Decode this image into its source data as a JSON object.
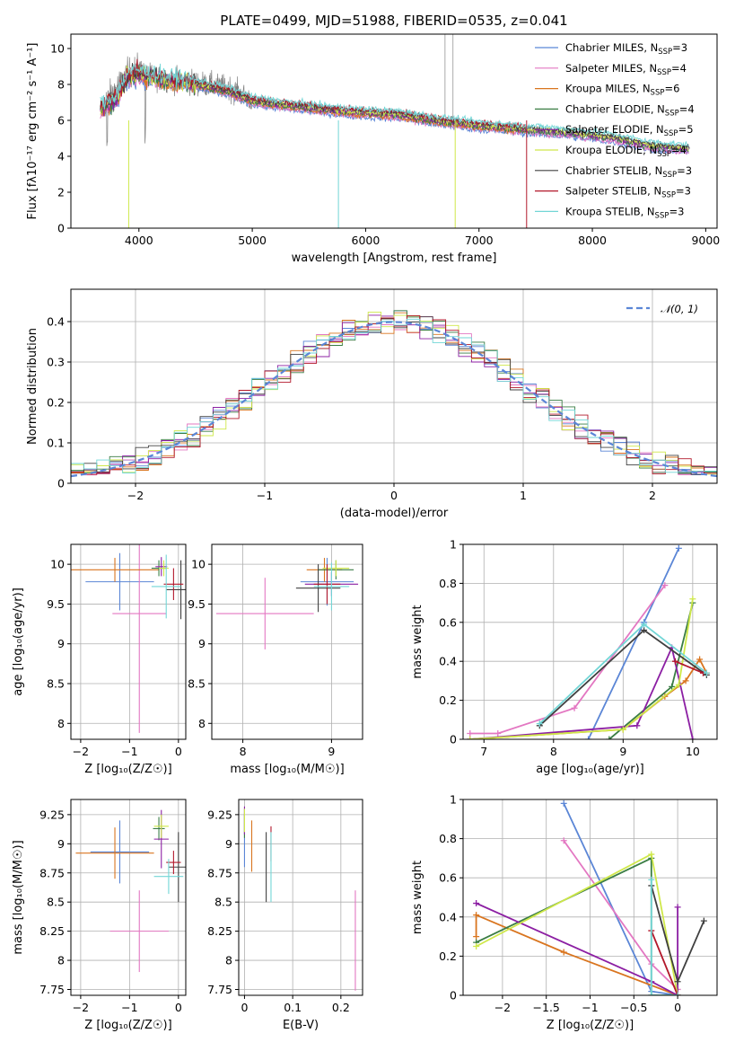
{
  "colors": {
    "chabrier_miles": "#5b86d6",
    "salpeter_miles": "#e377c2",
    "kroupa_miles": "#d9751f",
    "chabrier_elodie": "#3a7d44",
    "salpeter_elodie": "#8c1fa3",
    "kroupa_elodie": "#cfe84a",
    "chabrier_stelib": "#404040",
    "salpeter_stelib": "#b2182b",
    "kroupa_stelib": "#72d6d6",
    "data": "#808080",
    "normal": "#5b86d6"
  },
  "chart_data": [
    {
      "id": "spectrum",
      "type": "line",
      "title": "PLATE=0499, MJD=51988, FIBERID=0535, z=0.041",
      "xlabel": "wavelength [Angstrom, rest frame]",
      "ylabel": "Flux [fλ10⁻¹⁷ erg cm⁻² s⁻¹ A⁻¹]",
      "xlim": [
        3400,
        9100
      ],
      "ylim": [
        0,
        10.8
      ],
      "xticks": [
        4000,
        5000,
        6000,
        7000,
        8000,
        9000
      ],
      "yticks": [
        0,
        2,
        4,
        6,
        8,
        10
      ],
      "legend_position": "top-right",
      "legend": [
        {
          "key": "chabrier_miles",
          "label": "Chabrier MILES, N",
          "sub": "SSP",
          "rest": "=3"
        },
        {
          "key": "salpeter_miles",
          "label": "Salpeter MILES, N",
          "sub": "SSP",
          "rest": "=4"
        },
        {
          "key": "kroupa_miles",
          "label": "Kroupa MILES, N",
          "sub": "SSP",
          "rest": "=6"
        },
        {
          "key": "chabrier_elodie",
          "label": "Chabrier ELODIE, N",
          "sub": "SSP",
          "rest": "=4"
        },
        {
          "key": "salpeter_elodie",
          "label": "Salpeter ELODIE, N",
          "sub": "SSP",
          "rest": "=5"
        },
        {
          "key": "kroupa_elodie",
          "label": "Kroupa ELODIE, N",
          "sub": "SSP",
          "rest": "=4"
        },
        {
          "key": "chabrier_stelib",
          "label": "Chabrier STELIB, N",
          "sub": "SSP",
          "rest": "=3"
        },
        {
          "key": "salpeter_stelib",
          "label": "Salpeter STELIB, N",
          "sub": "SSP",
          "rest": "=3"
        },
        {
          "key": "kroupa_stelib",
          "label": "Kroupa STELIB, N",
          "sub": "SSP",
          "rest": "=3"
        }
      ],
      "model_continuum": [
        [
          3650,
          6.7
        ],
        [
          3700,
          6.8
        ],
        [
          3800,
          7.2
        ],
        [
          3900,
          8.4
        ],
        [
          4000,
          8.6
        ],
        [
          4100,
          8.4
        ],
        [
          4200,
          8.3
        ],
        [
          4400,
          8.1
        ],
        [
          4600,
          7.9
        ],
        [
          4800,
          7.6
        ],
        [
          5000,
          7.1
        ],
        [
          5200,
          6.9
        ],
        [
          5500,
          6.7
        ],
        [
          5800,
          6.5
        ],
        [
          6000,
          6.4
        ],
        [
          6300,
          6.3
        ],
        [
          6600,
          6.0
        ],
        [
          7000,
          5.7
        ],
        [
          7400,
          5.5
        ],
        [
          7800,
          5.3
        ],
        [
          8200,
          5.0
        ],
        [
          8500,
          4.6
        ],
        [
          8850,
          4.4
        ]
      ],
      "data_continuum": [
        [
          3650,
          6.0
        ],
        [
          3700,
          7.0
        ],
        [
          3800,
          7.8
        ],
        [
          3900,
          8.6
        ],
        [
          4000,
          8.9
        ],
        [
          4100,
          8.5
        ],
        [
          4200,
          8.3
        ],
        [
          4400,
          8.2
        ],
        [
          4600,
          8.0
        ],
        [
          4800,
          7.8
        ],
        [
          5000,
          7.1
        ],
        [
          5200,
          6.9
        ],
        [
          5500,
          6.7
        ],
        [
          5800,
          6.5
        ],
        [
          6000,
          6.4
        ],
        [
          6300,
          6.3
        ],
        [
          6600,
          6.0
        ],
        [
          7000,
          5.7
        ],
        [
          7400,
          5.4
        ],
        [
          7800,
          5.2
        ],
        [
          8200,
          5.0
        ],
        [
          8500,
          4.6
        ],
        [
          8850,
          4.4
        ]
      ]
    },
    {
      "id": "residuals",
      "type": "histogram",
      "xlabel": "(data-model)/error",
      "ylabel": "Normed distribution",
      "xlim": [
        -2.5,
        2.5
      ],
      "ylim": [
        0,
        0.48
      ],
      "xticks": [
        -2,
        -1,
        0,
        1,
        2
      ],
      "yticks": [
        0.0,
        0.1,
        0.2,
        0.3,
        0.4
      ],
      "legend_position": "top-right",
      "legend_label": "𝒩(0, 1)",
      "bin_width": 0.1
    },
    {
      "id": "age_vs_Z",
      "type": "errorbar",
      "xlabel": "Z [log₁₀(Z/Z☉)]",
      "ylabel": "age  [log₁₀(age/yr)]",
      "xlim": [
        -2.2,
        0.15
      ],
      "ylim": [
        7.8,
        10.25
      ],
      "xticks": [
        -2,
        -1,
        0
      ],
      "yticks": [
        8.0,
        8.5,
        9.0,
        9.5,
        10.0
      ],
      "points": [
        {
          "key": "chabrier_miles",
          "x": -1.2,
          "xerr": 0.7,
          "y": 9.78,
          "yerr": 0.36
        },
        {
          "key": "salpeter_miles",
          "x": -0.8,
          "xerr": 0.55,
          "y": 9.38,
          "yerr": 1.5
        },
        {
          "key": "kroupa_miles",
          "x": -1.3,
          "xerr": 0.9,
          "y": 9.93,
          "yerr": 0.15
        },
        {
          "key": "chabrier_elodie",
          "x": -0.4,
          "xerr": 0.15,
          "y": 9.95,
          "yerr": 0.1
        },
        {
          "key": "salpeter_elodie",
          "x": -0.35,
          "xerr": 0.12,
          "y": 9.97,
          "yerr": 0.12
        },
        {
          "key": "kroupa_elodie",
          "x": -0.3,
          "xerr": 0.1,
          "y": 9.95,
          "yerr": 0.1
        },
        {
          "key": "chabrier_stelib",
          "x": 0.05,
          "xerr": 0.3,
          "y": 9.68,
          "yerr": 0.37
        },
        {
          "key": "salpeter_stelib",
          "x": -0.1,
          "xerr": 0.2,
          "y": 9.75,
          "yerr": 0.2
        },
        {
          "key": "kroupa_stelib",
          "x": -0.25,
          "xerr": 0.3,
          "y": 9.72,
          "yerr": 0.4
        }
      ]
    },
    {
      "id": "age_vs_mass",
      "type": "errorbar",
      "xlabel": "mass [log₁₀(M/M☉)]",
      "ylabel": "",
      "xlim": [
        7.65,
        9.35
      ],
      "ylim": [
        7.8,
        10.25
      ],
      "xticks": [
        8,
        9
      ],
      "yticks": [
        8.0,
        8.5,
        9.0,
        9.5,
        10.0
      ],
      "points": [
        {
          "key": "chabrier_miles",
          "x": 8.95,
          "xerr": 0.3,
          "y": 9.78,
          "yerr": 0.3
        },
        {
          "key": "salpeter_miles",
          "x": 8.25,
          "xerr": 0.55,
          "y": 9.38,
          "yerr": 0.45
        },
        {
          "key": "kroupa_miles",
          "x": 8.92,
          "xerr": 0.2,
          "y": 9.93,
          "yerr": 0.15
        },
        {
          "key": "chabrier_elodie",
          "x": 9.05,
          "xerr": 0.2,
          "y": 9.93,
          "yerr": 0.12
        },
        {
          "key": "salpeter_elodie",
          "x": 9.0,
          "xerr": 0.3,
          "y": 9.75,
          "yerr": 0.15
        },
        {
          "key": "kroupa_elodie",
          "x": 9.05,
          "xerr": 0.15,
          "y": 9.95,
          "yerr": 0.1
        },
        {
          "key": "chabrier_stelib",
          "x": 8.85,
          "xerr": 0.25,
          "y": 9.7,
          "yerr": 0.3
        },
        {
          "key": "salpeter_stelib",
          "x": 8.95,
          "xerr": 0.15,
          "y": 9.75,
          "yerr": 0.25
        },
        {
          "key": "kroupa_stelib",
          "x": 9.0,
          "xerr": 0.2,
          "y": 9.72,
          "yerr": 0.3
        }
      ]
    },
    {
      "id": "weight_vs_age",
      "type": "line",
      "xlabel": "age  [log₁₀(age/yr)]",
      "ylabel": "mass weight",
      "xlim": [
        6.7,
        10.35
      ],
      "ylim": [
        0,
        1.0
      ],
      "xticks": [
        7,
        8,
        9,
        10
      ],
      "yticks": [
        0.0,
        0.2,
        0.4,
        0.6,
        0.8,
        1.0
      ],
      "series": [
        {
          "key": "chabrier_miles",
          "x": [
            8.5,
            9.3,
            9.8
          ],
          "y": [
            0.0,
            0.6,
            0.98
          ]
        },
        {
          "key": "salpeter_miles",
          "x": [
            6.8,
            7.2,
            8.3,
            9.6
          ],
          "y": [
            0.03,
            0.03,
            0.16,
            0.79
          ]
        },
        {
          "key": "kroupa_miles",
          "x": [
            6.8,
            9.0,
            9.6,
            9.9,
            10.1,
            10.2
          ],
          "y": [
            0.0,
            0.05,
            0.22,
            0.3,
            0.41,
            0.34
          ]
        },
        {
          "key": "chabrier_elodie",
          "x": [
            8.8,
            9.7,
            10.0
          ],
          "y": [
            0.0,
            0.27,
            0.7
          ]
        },
        {
          "key": "salpeter_elodie",
          "x": [
            6.8,
            9.2,
            9.7,
            10.0
          ],
          "y": [
            0.0,
            0.07,
            0.47,
            0.0
          ]
        },
        {
          "key": "kroupa_elodie",
          "x": [
            6.8,
            9.0,
            9.8,
            10.0
          ],
          "y": [
            0.0,
            0.05,
            0.28,
            0.72
          ]
        },
        {
          "key": "chabrier_stelib",
          "x": [
            7.8,
            9.3,
            10.2
          ],
          "y": [
            0.07,
            0.56,
            0.33
          ]
        },
        {
          "key": "salpeter_stelib",
          "x": [
            9.75,
            10.15
          ],
          "y": [
            0.4,
            0.34
          ]
        },
        {
          "key": "kroupa_stelib",
          "x": [
            7.8,
            9.3,
            10.2
          ],
          "y": [
            0.08,
            0.59,
            0.34
          ]
        }
      ]
    },
    {
      "id": "mass_vs_Z",
      "type": "errorbar",
      "xlabel": "Z [log₁₀(Z/Z☉)]",
      "ylabel": "mass [log₁₀(M/M☉)]",
      "xlim": [
        -2.2,
        0.15
      ],
      "ylim": [
        7.7,
        9.38
      ],
      "xticks": [
        -2,
        -1,
        0
      ],
      "yticks": [
        7.75,
        8.0,
        8.25,
        8.5,
        8.75,
        9.0,
        9.25
      ],
      "points": [
        {
          "key": "chabrier_miles",
          "x": -1.2,
          "xerr": 0.6,
          "y": 8.93,
          "yerr": 0.27
        },
        {
          "key": "salpeter_miles",
          "x": -0.8,
          "xerr": 0.6,
          "y": 8.25,
          "yerr": 0.35
        },
        {
          "key": "kroupa_miles",
          "x": -1.3,
          "xerr": 0.8,
          "y": 8.92,
          "yerr": 0.22
        },
        {
          "key": "chabrier_elodie",
          "x": -0.4,
          "xerr": 0.12,
          "y": 9.13,
          "yerr": 0.1
        },
        {
          "key": "salpeter_elodie",
          "x": -0.35,
          "xerr": 0.15,
          "y": 9.04,
          "yerr": 0.25
        },
        {
          "key": "kroupa_elodie",
          "x": -0.35,
          "xerr": 0.15,
          "y": 9.15,
          "yerr": 0.1
        },
        {
          "key": "chabrier_stelib",
          "x": 0.0,
          "xerr": 0.2,
          "y": 8.8,
          "yerr": 0.3
        },
        {
          "key": "salpeter_stelib",
          "x": -0.1,
          "xerr": 0.15,
          "y": 8.84,
          "yerr": 0.1
        },
        {
          "key": "kroupa_stelib",
          "x": -0.2,
          "xerr": 0.3,
          "y": 8.72,
          "yerr": 0.15
        }
      ]
    },
    {
      "id": "mass_vs_ebv",
      "type": "errorbar",
      "xlabel": "E(B-V)",
      "ylabel": "",
      "xlim": [
        -0.012,
        0.245
      ],
      "ylim": [
        7.7,
        9.38
      ],
      "xticks": [
        0.0,
        0.1,
        0.2
      ],
      "yticks": [
        7.75,
        8.0,
        8.25,
        8.5,
        8.75,
        9.0,
        9.25
      ],
      "points": [
        {
          "key": "chabrier_miles",
          "x": 0.0,
          "xerr": 0,
          "y": 9.05,
          "yerr": 0.25
        },
        {
          "key": "salpeter_miles",
          "x": 0.23,
          "xerr": 0,
          "y": 8.17,
          "yerr": 0.43
        },
        {
          "key": "kroupa_miles",
          "x": 0.015,
          "xerr": 0,
          "y": 8.98,
          "yerr": 0.22
        },
        {
          "key": "chabrier_elodie",
          "x": 0.0,
          "xerr": 0,
          "y": 9.15,
          "yerr": 0.1
        },
        {
          "key": "salpeter_elodie",
          "x": 0.0,
          "xerr": 0,
          "y": 9.2,
          "yerr": 0.12
        },
        {
          "key": "kroupa_elodie",
          "x": 0.0,
          "xerr": 0,
          "y": 9.2,
          "yerr": 0.1
        },
        {
          "key": "chabrier_stelib",
          "x": 0.045,
          "xerr": 0,
          "y": 8.8,
          "yerr": 0.3
        },
        {
          "key": "salpeter_stelib",
          "x": 0.055,
          "xerr": 0,
          "y": 9.0,
          "yerr": 0.15
        },
        {
          "key": "kroupa_stelib",
          "x": 0.055,
          "xerr": 0,
          "y": 8.8,
          "yerr": 0.3
        }
      ]
    },
    {
      "id": "weight_vs_Z",
      "type": "line",
      "xlabel": "Z [log₁₀(Z/Z☉)]",
      "ylabel": "mass weight",
      "xlim": [
        -2.45,
        0.45
      ],
      "ylim": [
        0,
        1.0
      ],
      "xticks": [
        -2.0,
        -1.5,
        -1.0,
        -0.5,
        0.0
      ],
      "yticks": [
        0.0,
        0.2,
        0.4,
        0.6,
        0.8,
        1.0
      ],
      "series": [
        {
          "key": "chabrier_miles",
          "x": [
            -1.3,
            -0.3,
            0.0
          ],
          "y": [
            0.98,
            0.02,
            0.0
          ]
        },
        {
          "key": "salpeter_miles",
          "x": [
            -1.3,
            -0.3,
            0.0
          ],
          "y": [
            0.79,
            0.16,
            0.03
          ]
        },
        {
          "key": "kroupa_miles",
          "x": [
            -2.3,
            -2.3,
            -1.3,
            0.0
          ],
          "y": [
            0.3,
            0.41,
            0.22,
            0.0
          ]
        },
        {
          "key": "chabrier_elodie",
          "x": [
            -2.3,
            -0.3,
            -0.3,
            0.0
          ],
          "y": [
            0.27,
            0.7,
            0.0,
            0.0
          ]
        },
        {
          "key": "salpeter_elodie",
          "x": [
            -2.3,
            -0.3,
            0.0,
            0.0
          ],
          "y": [
            0.47,
            0.07,
            0.0,
            0.45
          ]
        },
        {
          "key": "kroupa_elodie",
          "x": [
            -2.3,
            -0.3,
            0.0
          ],
          "y": [
            0.25,
            0.72,
            0.0
          ]
        },
        {
          "key": "chabrier_stelib",
          "x": [
            -0.3,
            0.0,
            0.3
          ],
          "y": [
            0.56,
            0.07,
            0.38
          ]
        },
        {
          "key": "salpeter_stelib",
          "x": [
            -0.3,
            0.0
          ],
          "y": [
            0.33,
            0.0
          ]
        },
        {
          "key": "kroupa_stelib",
          "x": [
            -0.3,
            -0.3,
            0.0
          ],
          "y": [
            0.59,
            0.0,
            0.0
          ]
        }
      ]
    }
  ]
}
